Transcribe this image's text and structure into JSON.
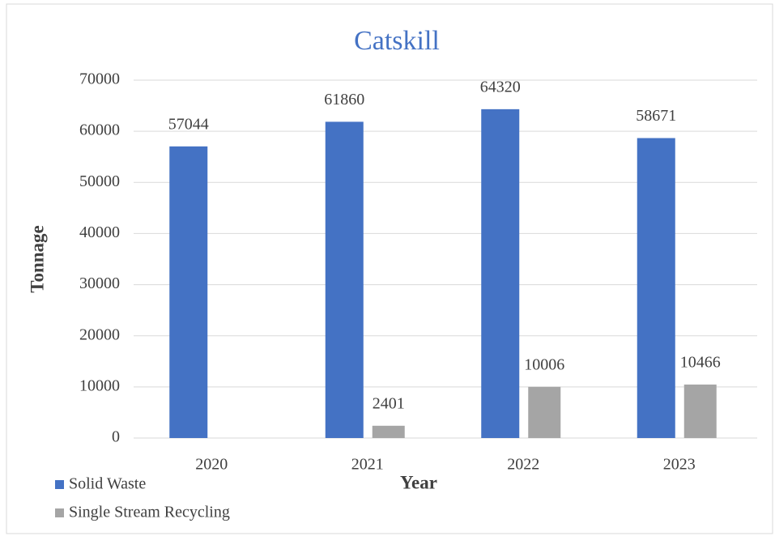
{
  "chart_data": {
    "type": "bar",
    "title": "Catskill",
    "x_label": "Year",
    "y_label": "Tonnage",
    "categories": [
      "2020",
      "2021",
      "2022",
      "2023"
    ],
    "series": [
      {
        "name": "Solid Waste",
        "color": "#4472c4",
        "values": [
          57044,
          61860,
          64320,
          58671
        ]
      },
      {
        "name": "Single Stream Recycling",
        "color": "#a5a5a5",
        "values": [
          null,
          2401,
          10006,
          10466
        ]
      }
    ],
    "ylim": [
      0,
      70000
    ],
    "yticks": [
      0,
      10000,
      20000,
      30000,
      40000,
      50000,
      60000,
      70000
    ],
    "grid": true,
    "legend": "bottom-left"
  }
}
